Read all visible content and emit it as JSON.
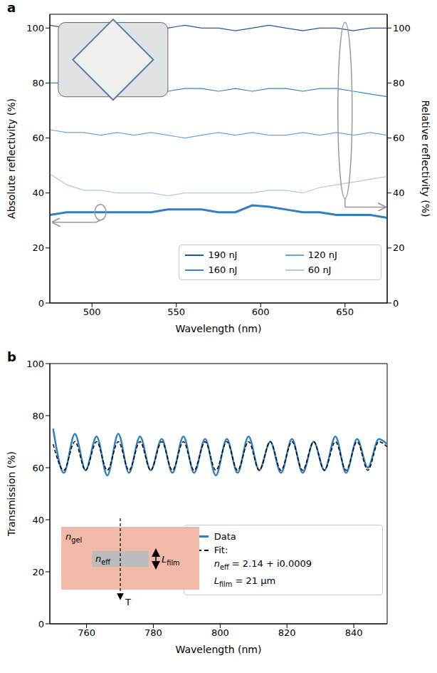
{
  "chart_data": [
    {
      "label": "a",
      "type": "line",
      "x_label": "Wavelength (nm)",
      "y_label": "Absolute reflectivity (%)",
      "y2_label": "Relative reflectivity (%)",
      "xlim": [
        475,
        675
      ],
      "xticks": [
        500,
        550,
        600,
        650
      ],
      "ylim": [
        0,
        105
      ],
      "yticks": [
        0,
        20,
        40,
        60,
        80,
        100
      ],
      "y2lim": [
        0,
        105
      ],
      "y2ticks": [
        0,
        20,
        40,
        60,
        80,
        100
      ],
      "legend": "lower right",
      "x": [
        475,
        485,
        495,
        505,
        515,
        525,
        535,
        545,
        555,
        565,
        575,
        585,
        595,
        605,
        615,
        625,
        635,
        645,
        655,
        665,
        675
      ],
      "series": [
        {
          "name": "190 nJ",
          "color": "#1f5c99",
          "axis": "y2",
          "values": [
            101,
            100,
            99,
            100,
            101,
            100,
            99,
            100,
            101,
            100,
            100,
            99,
            100,
            101,
            100,
            99,
            100,
            100,
            99,
            100,
            100
          ]
        },
        {
          "name": "160 nJ",
          "color": "#3b82c4",
          "axis": "y2",
          "values": [
            80,
            80,
            79,
            79,
            78,
            78,
            79,
            77,
            78,
            78,
            77,
            78,
            77,
            78,
            78,
            77,
            78,
            78,
            77,
            76,
            75
          ]
        },
        {
          "name": "120 nJ",
          "color": "#6aa6d8",
          "axis": "y2",
          "values": [
            63,
            62,
            62,
            61,
            62,
            61,
            62,
            61,
            60,
            61,
            62,
            61,
            62,
            61,
            61,
            62,
            61,
            62,
            61,
            62,
            61
          ]
        },
        {
          "name": "60 nJ",
          "color": "#a8cbe8",
          "axis": "y2",
          "values": [
            47,
            43,
            41,
            41,
            40,
            40,
            40,
            39,
            40,
            40,
            40,
            40,
            40,
            41,
            41,
            40,
            42,
            43,
            44,
            45,
            46
          ]
        },
        {
          "color": "#2f7fc1",
          "values": [
            32,
            33,
            33,
            33,
            33,
            33,
            33,
            34,
            34,
            34,
            33,
            33,
            35.5,
            35,
            34,
            33,
            33,
            32,
            32,
            32,
            31
          ]
        }
      ]
    },
    {
      "label": "b",
      "type": "line",
      "x_label": "Wavelength (nm)",
      "y_label": "Transmission (%)",
      "xlim": [
        749,
        850
      ],
      "xticks": [
        760,
        780,
        800,
        820,
        840
      ],
      "ylim": [
        0,
        100
      ],
      "yticks": [
        0,
        20,
        40,
        60,
        80,
        100
      ],
      "legend": "lower right",
      "series": [
        {
          "name": "Data",
          "color": "#2f7fc1",
          "line_style": "solid",
          "x": [
            750.0,
            753.2,
            756.5,
            759.7,
            763.0,
            766.2,
            769.5,
            772.7,
            776.0,
            779.2,
            782.5,
            785.7,
            789.0,
            792.2,
            795.5,
            798.7,
            802.0,
            805.2,
            808.5,
            811.7,
            815.0,
            818.2,
            821.5,
            824.7,
            828.0,
            831.2,
            834.5,
            837.7,
            841.0,
            844.2,
            847.5,
            850.0
          ],
          "values": [
            75,
            58,
            73,
            59,
            72,
            57,
            73,
            58,
            72,
            59,
            71,
            58,
            72,
            58,
            71,
            57,
            71,
            58,
            72,
            59,
            70,
            58,
            71,
            58,
            70,
            59,
            72,
            58,
            71,
            60,
            71,
            69
          ]
        },
        {
          "name": "Fit:",
          "color": "#000000",
          "line_style": "dashed",
          "x": [
            750.0,
            753.2,
            756.5,
            759.7,
            763.0,
            766.2,
            769.5,
            772.7,
            776.0,
            779.2,
            782.5,
            785.7,
            789.0,
            792.2,
            795.5,
            798.7,
            802.0,
            805.2,
            808.5,
            811.7,
            815.0,
            818.2,
            821.5,
            824.7,
            828.0,
            831.2,
            834.5,
            837.7,
            841.0,
            844.2,
            847.5,
            850.0
          ],
          "values": [
            69,
            59,
            70,
            59,
            70,
            59,
            70,
            59,
            70,
            59,
            70,
            59,
            70,
            59,
            70,
            59,
            70,
            59,
            70,
            59,
            70,
            59,
            70,
            59,
            70,
            59,
            70,
            59,
            70,
            59,
            70,
            68
          ]
        }
      ],
      "annotations": {
        "fit": [
          {
            "symbol": "n",
            "sub": "eff",
            "text": " = 2.14 + i0.0009"
          },
          {
            "symbol": "L",
            "sub": "film",
            "text": " = 21 μm"
          }
        ],
        "diagram": {
          "outer": {
            "symbol": "n",
            "sub": "gel"
          },
          "inner": {
            "symbol": "n",
            "sub": "eff"
          },
          "thickness": {
            "symbol": "L",
            "sub": "film"
          },
          "arrow": "T"
        }
      }
    }
  ]
}
